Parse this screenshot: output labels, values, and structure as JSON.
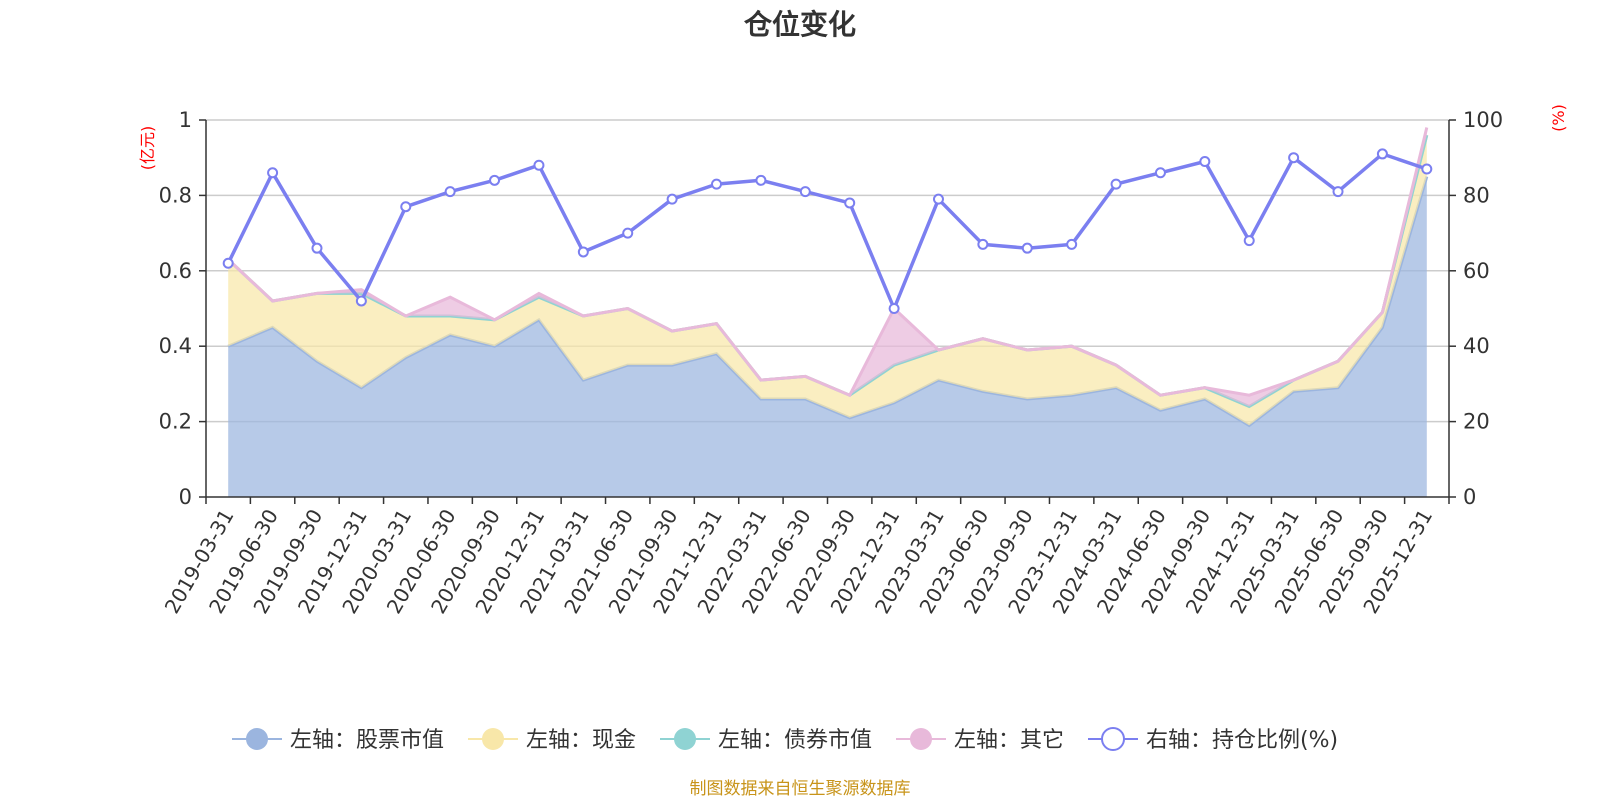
{
  "chart_data": {
    "type": "area",
    "title": "仓位变化",
    "left_axis_unit": "(亿元)",
    "right_axis_unit": "(%)",
    "ylim_left": [
      0,
      1
    ],
    "yticks_left": [
      "0",
      "0.2",
      "0.4",
      "0.6",
      "0.8",
      "1"
    ],
    "ylim_right": [
      0,
      100
    ],
    "yticks_right": [
      "0",
      "20",
      "40",
      "60",
      "80",
      "100"
    ],
    "categories": [
      "2019-03-31",
      "2019-06-30",
      "2019-09-30",
      "2019-12-31",
      "2020-03-31",
      "2020-06-30",
      "2020-09-30",
      "2020-12-31",
      "2021-03-31",
      "2021-06-30",
      "2021-09-30",
      "2021-12-31",
      "2022-03-31",
      "2022-06-30",
      "2022-09-30",
      "2022-12-31",
      "2023-03-31",
      "2023-06-30",
      "2023-09-30",
      "2023-12-31",
      "2024-03-31",
      "2024-06-30",
      "2024-09-30",
      "2024-12-31",
      "2025-03-31",
      "2025-06-30",
      "2025-09-30",
      "2025-12-31"
    ],
    "series": [
      {
        "name": "左轴：股票市值",
        "axis": "left",
        "stack": true,
        "color": "#9bb5df",
        "values": [
          0.4,
          0.45,
          0.36,
          0.29,
          0.37,
          0.43,
          0.4,
          0.47,
          0.31,
          0.35,
          0.35,
          0.38,
          0.26,
          0.26,
          0.21,
          0.25,
          0.31,
          0.28,
          0.26,
          0.27,
          0.29,
          0.23,
          0.26,
          0.19,
          0.28,
          0.29,
          0.45,
          0.85
        ]
      },
      {
        "name": "左轴：现金",
        "axis": "left",
        "stack": true,
        "color": "#f8e7a9",
        "values": [
          0.23,
          0.07,
          0.18,
          0.25,
          0.11,
          0.05,
          0.07,
          0.06,
          0.17,
          0.15,
          0.09,
          0.08,
          0.05,
          0.06,
          0.06,
          0.1,
          0.08,
          0.14,
          0.13,
          0.13,
          0.06,
          0.04,
          0.03,
          0.05,
          0.03,
          0.07,
          0.04,
          0.11
        ]
      },
      {
        "name": "左轴：债券市值",
        "axis": "left",
        "stack": true,
        "color": "#8fd3d3",
        "values": [
          0,
          0,
          0,
          0,
          0,
          0,
          0,
          0,
          0,
          0,
          0,
          0,
          0,
          0,
          0,
          0,
          0,
          0,
          0,
          0,
          0,
          0,
          0,
          0,
          0,
          0,
          0,
          0
        ]
      },
      {
        "name": "左轴：其它",
        "axis": "left",
        "stack": true,
        "color": "#e8b9da",
        "values": [
          0,
          0,
          0,
          0.01,
          0,
          0.05,
          0,
          0.01,
          0,
          0,
          0,
          0,
          0,
          0,
          0,
          0.15,
          0,
          0,
          0,
          0,
          0,
          0,
          0,
          0.03,
          0,
          0,
          0,
          0.02
        ]
      },
      {
        "name": "右轴：持仓比例(%)",
        "axis": "right",
        "stack": false,
        "color": "#7b7ff0",
        "values": [
          62,
          86,
          66,
          52,
          77,
          81,
          84,
          88,
          65,
          70,
          79,
          83,
          84,
          81,
          78,
          50,
          79,
          67,
          66,
          67,
          83,
          86,
          89,
          68,
          90,
          81,
          91,
          87
        ]
      }
    ],
    "source_note": "制图数据来自恒生聚源数据库"
  }
}
